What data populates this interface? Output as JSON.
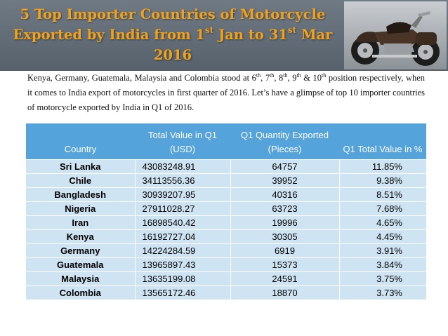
{
  "title": {
    "part1": "5 Top Importer Countries of Motorcycle Exported by India from 1",
    "sup1": "st",
    "part2": " Jan to 31",
    "sup2": "st",
    "part3": " Mar 2016"
  },
  "intro": {
    "t1": "Kenya, Germany, Guatemala, Malaysia and Colombia stood at 6",
    "s1": "th",
    "t2": ", 7",
    "s2": "th",
    "t3": ", 8",
    "s3": "th",
    "t4": ", 9",
    "s4": "th",
    "t5": " & 10",
    "s5": "th",
    "t6": " position respectively, when it comes to India export of motorcycles in first quarter of 2016. Let’s have a glimpse of top 10 importer countries of motorcycle exported by India in Q1 of 2016."
  },
  "table": {
    "headers": [
      "Country",
      "Total Value in Q1 (USD)",
      "Q1 Quantity Exported (Pieces)",
      "Q1 Total Value in %"
    ],
    "rows": [
      [
        "Sri Lanka",
        "43083248.91",
        "64757",
        "11.85%"
      ],
      [
        "Chile",
        "34113556.36",
        "39952",
        "9.38%"
      ],
      [
        "Bangladesh",
        "30939207.95",
        "40316",
        "8.51%"
      ],
      [
        "Nigeria",
        "27911028.27",
        "63723",
        "7.68%"
      ],
      [
        "Iran",
        "16898540.42",
        "19996",
        "4.65%"
      ],
      [
        "Kenya",
        "16192727.04",
        "30305",
        "4.45%"
      ],
      [
        "Germany",
        "14224284.59",
        "6919",
        "3.91%"
      ],
      [
        "Guatemala",
        "13965897.43",
        "15373",
        "3.84%"
      ],
      [
        "Malaysia",
        "13635199.08",
        "24591",
        "3.75%"
      ],
      [
        "Colombia",
        "13565172.46",
        "18870",
        "3.73%"
      ]
    ]
  },
  "colors": {
    "header_bg": "#5f6a75",
    "title_text": "#f2a21a",
    "table_header_bg": "#55a3db",
    "table_row_bg": "#cfe4f3"
  },
  "icons": {
    "photo": "motorcycle-photo"
  }
}
